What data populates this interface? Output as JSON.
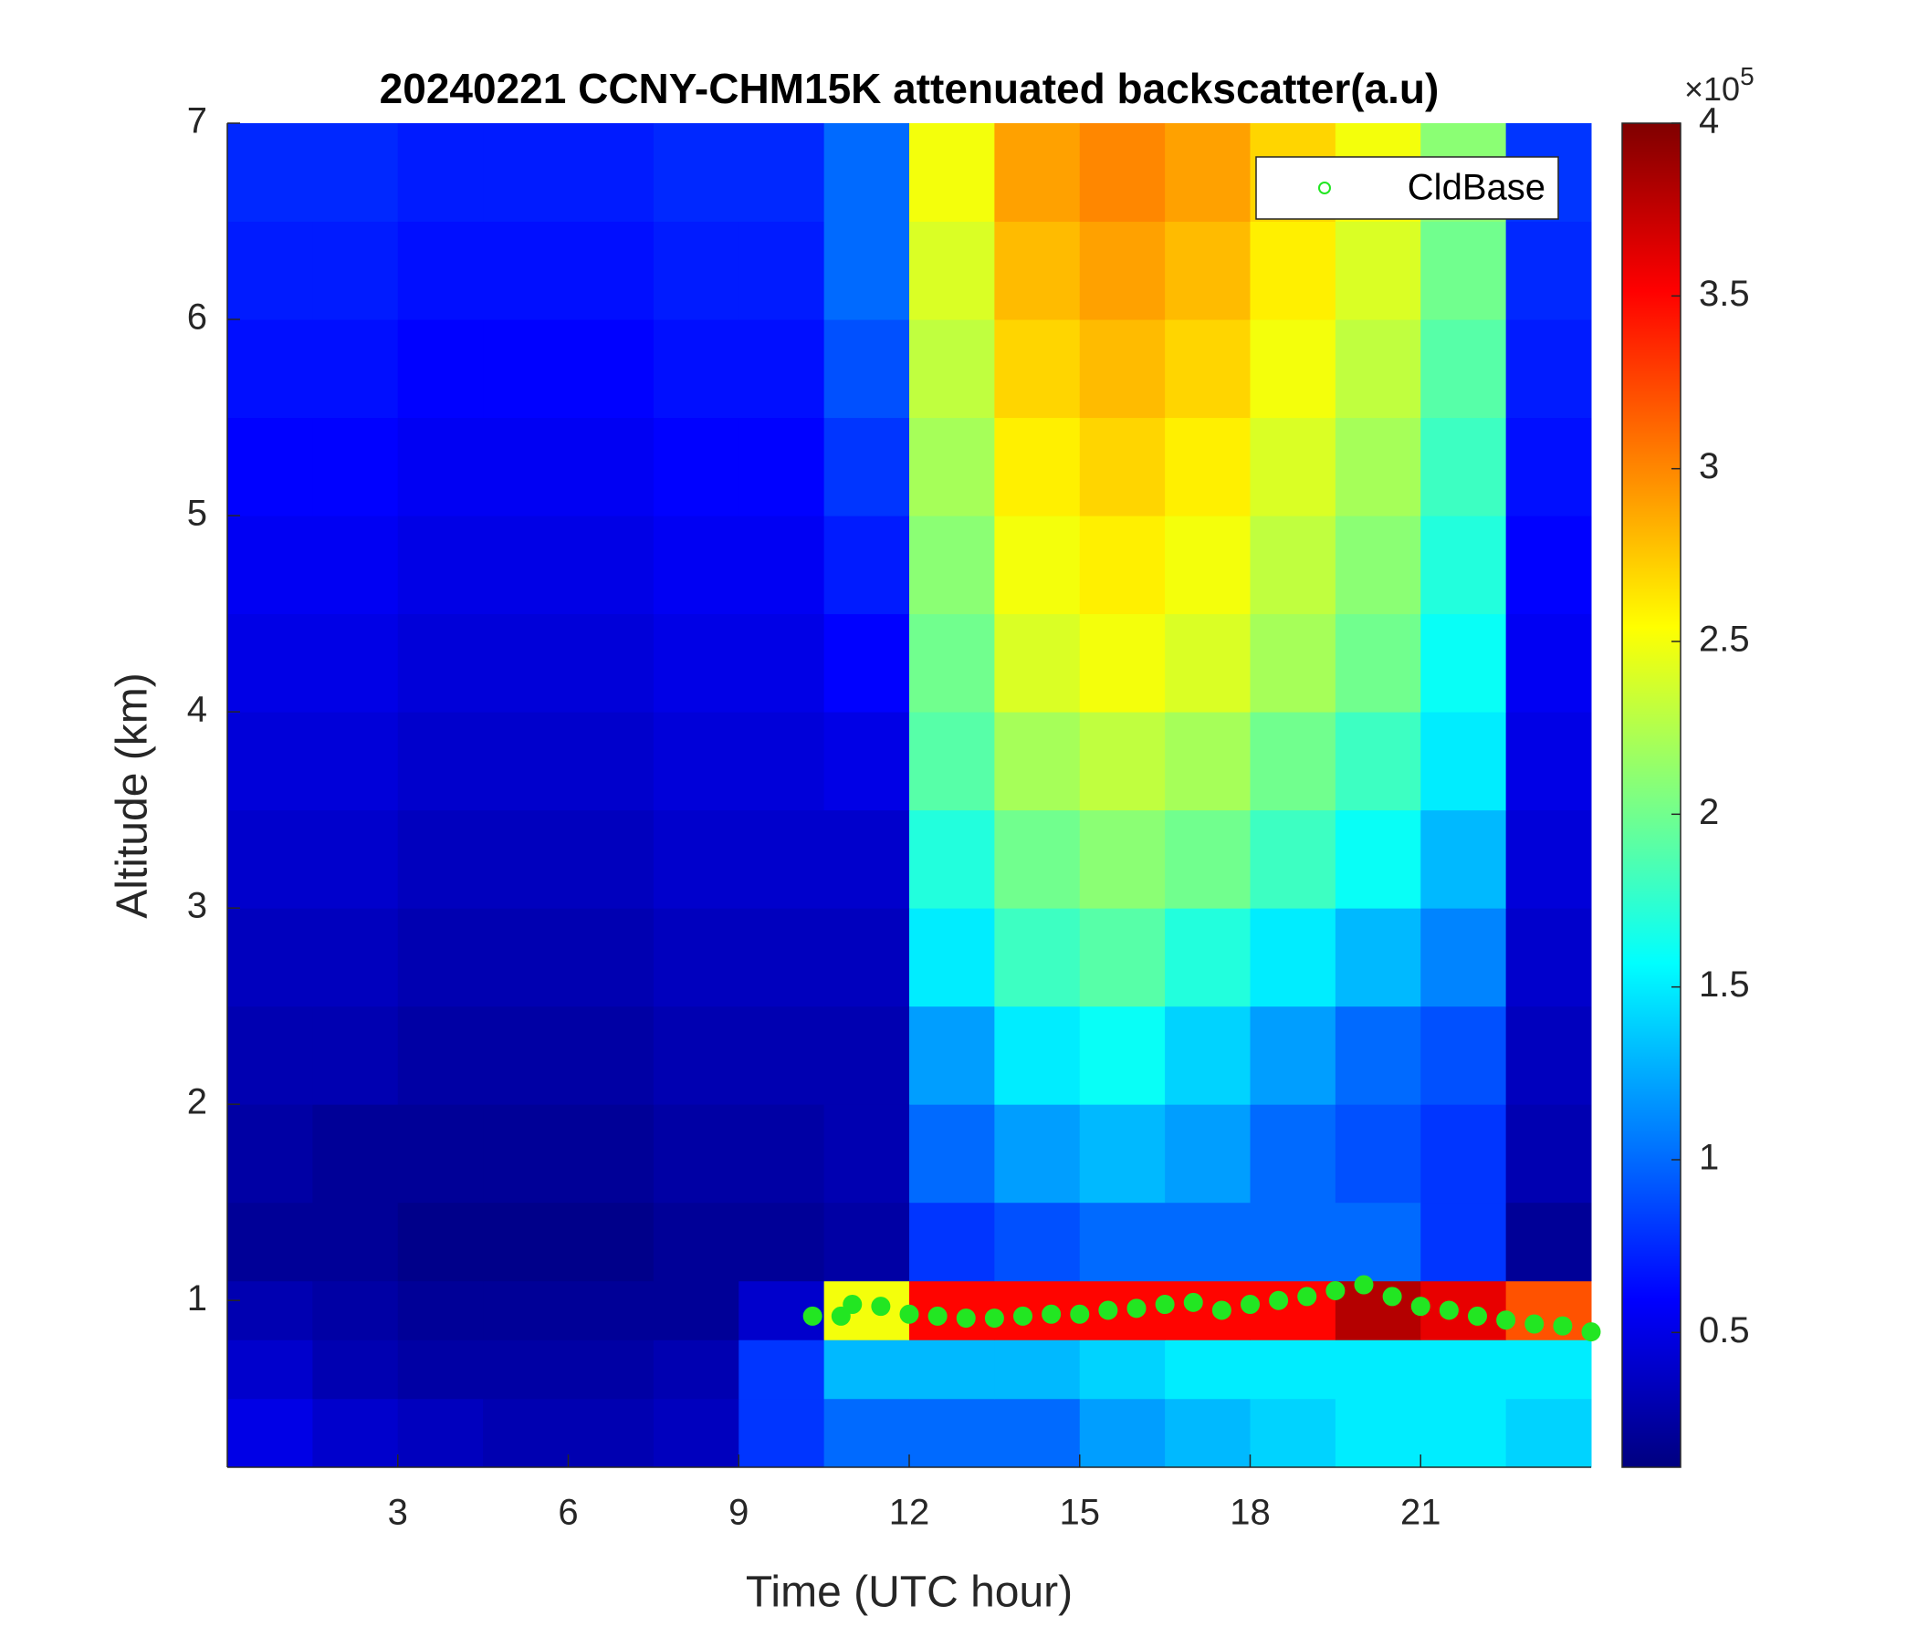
{
  "chart_data": {
    "type": "heatmap",
    "title": "20240221 CCNY-CHM15K attenuated backscatter(a.u)",
    "x_label": "Time (UTC hour)",
    "y_label": "Altitude (km)",
    "xlim": [
      0,
      24
    ],
    "xticks": [
      3,
      6,
      9,
      12,
      15,
      18,
      21
    ],
    "ylim": [
      0.15,
      7
    ],
    "yticks": [
      1,
      2,
      3,
      4,
      5,
      6,
      7
    ],
    "colormap": "jet",
    "clim": [
      0.11,
      4
    ],
    "cticks": [
      0.5,
      1,
      1.5,
      2,
      2.5,
      3,
      3.5,
      4
    ],
    "colorbar_scale": {
      "base": "×10",
      "exponent": "5"
    },
    "x_edges": [
      0,
      1.5,
      3,
      4.5,
      6,
      7.5,
      9,
      10.5,
      12,
      13.5,
      15,
      16.5,
      18,
      19.5,
      21,
      22.5,
      24
    ],
    "y_edges": [
      0.15,
      0.5,
      0.8,
      1.1,
      1.5,
      2,
      2.5,
      3,
      3.5,
      4,
      4.5,
      5,
      5.5,
      6,
      6.5,
      7
    ],
    "z": [
      [
        0.5,
        0.4,
        0.35,
        0.3,
        0.3,
        0.35,
        0.8,
        1.0,
        1.0,
        1.0,
        1.2,
        1.3,
        1.4,
        1.5,
        1.5,
        1.4
      ],
      [
        0.4,
        0.3,
        0.25,
        0.25,
        0.25,
        0.3,
        0.8,
        1.3,
        1.3,
        1.3,
        1.4,
        1.5,
        1.5,
        1.5,
        1.5,
        1.5
      ],
      [
        0.3,
        0.25,
        0.2,
        0.2,
        0.2,
        0.2,
        0.4,
        2.5,
        3.5,
        3.5,
        3.5,
        3.5,
        3.5,
        3.8,
        3.6,
        3.2
      ],
      [
        0.2,
        0.2,
        0.15,
        0.15,
        0.15,
        0.2,
        0.2,
        0.25,
        0.8,
        0.9,
        1.0,
        1.0,
        1.0,
        1.0,
        0.8,
        0.2
      ],
      [
        0.25,
        0.2,
        0.2,
        0.2,
        0.2,
        0.25,
        0.25,
        0.3,
        1.0,
        1.2,
        1.3,
        1.2,
        1.0,
        0.9,
        0.8,
        0.3
      ],
      [
        0.3,
        0.3,
        0.25,
        0.25,
        0.25,
        0.3,
        0.3,
        0.3,
        1.2,
        1.5,
        1.6,
        1.4,
        1.2,
        1.0,
        0.9,
        0.35
      ],
      [
        0.35,
        0.35,
        0.3,
        0.3,
        0.3,
        0.35,
        0.35,
        0.35,
        1.5,
        1.8,
        1.9,
        1.7,
        1.5,
        1.3,
        1.1,
        0.4
      ],
      [
        0.4,
        0.4,
        0.35,
        0.35,
        0.35,
        0.4,
        0.4,
        0.4,
        1.7,
        2.0,
        2.1,
        2.0,
        1.8,
        1.6,
        1.3,
        0.45
      ],
      [
        0.45,
        0.45,
        0.4,
        0.4,
        0.4,
        0.45,
        0.45,
        0.5,
        1.9,
        2.2,
        2.3,
        2.2,
        2.0,
        1.8,
        1.5,
        0.5
      ],
      [
        0.5,
        0.5,
        0.45,
        0.45,
        0.45,
        0.5,
        0.5,
        0.6,
        2.0,
        2.4,
        2.5,
        2.4,
        2.2,
        2.0,
        1.6,
        0.55
      ],
      [
        0.55,
        0.55,
        0.5,
        0.5,
        0.5,
        0.55,
        0.55,
        0.7,
        2.1,
        2.5,
        2.6,
        2.5,
        2.3,
        2.1,
        1.7,
        0.6
      ],
      [
        0.6,
        0.6,
        0.55,
        0.55,
        0.55,
        0.6,
        0.6,
        0.8,
        2.2,
        2.6,
        2.7,
        2.6,
        2.4,
        2.2,
        1.8,
        0.65
      ],
      [
        0.65,
        0.65,
        0.6,
        0.6,
        0.6,
        0.65,
        0.65,
        0.9,
        2.3,
        2.7,
        2.8,
        2.7,
        2.5,
        2.3,
        1.9,
        0.7
      ],
      [
        0.7,
        0.7,
        0.65,
        0.65,
        0.65,
        0.7,
        0.7,
        1.0,
        2.4,
        2.8,
        2.9,
        2.8,
        2.6,
        2.4,
        2.0,
        0.75
      ],
      [
        0.75,
        0.75,
        0.7,
        0.7,
        0.7,
        0.75,
        0.75,
        1.0,
        2.5,
        2.9,
        3.0,
        2.9,
        2.7,
        2.5,
        2.1,
        0.8
      ]
    ],
    "series": [
      {
        "name": "CldBase",
        "color": "#22e622",
        "x": [
          10.3,
          10.8,
          11,
          11.5,
          12,
          12.5,
          13,
          13.5,
          14,
          14.5,
          15,
          15.5,
          16,
          16.5,
          17,
          17.5,
          18,
          18.5,
          19,
          19.5,
          20,
          20.5,
          21,
          21.5,
          22,
          22.5,
          23,
          23.5,
          24
        ],
        "values": [
          0.92,
          0.92,
          0.98,
          0.97,
          0.93,
          0.92,
          0.91,
          0.91,
          0.92,
          0.93,
          0.93,
          0.95,
          0.96,
          0.98,
          0.99,
          0.95,
          0.98,
          1.0,
          1.02,
          1.05,
          1.08,
          1.02,
          0.97,
          0.95,
          0.92,
          0.9,
          0.88,
          0.87,
          0.84
        ]
      }
    ],
    "legend": "upper right"
  }
}
